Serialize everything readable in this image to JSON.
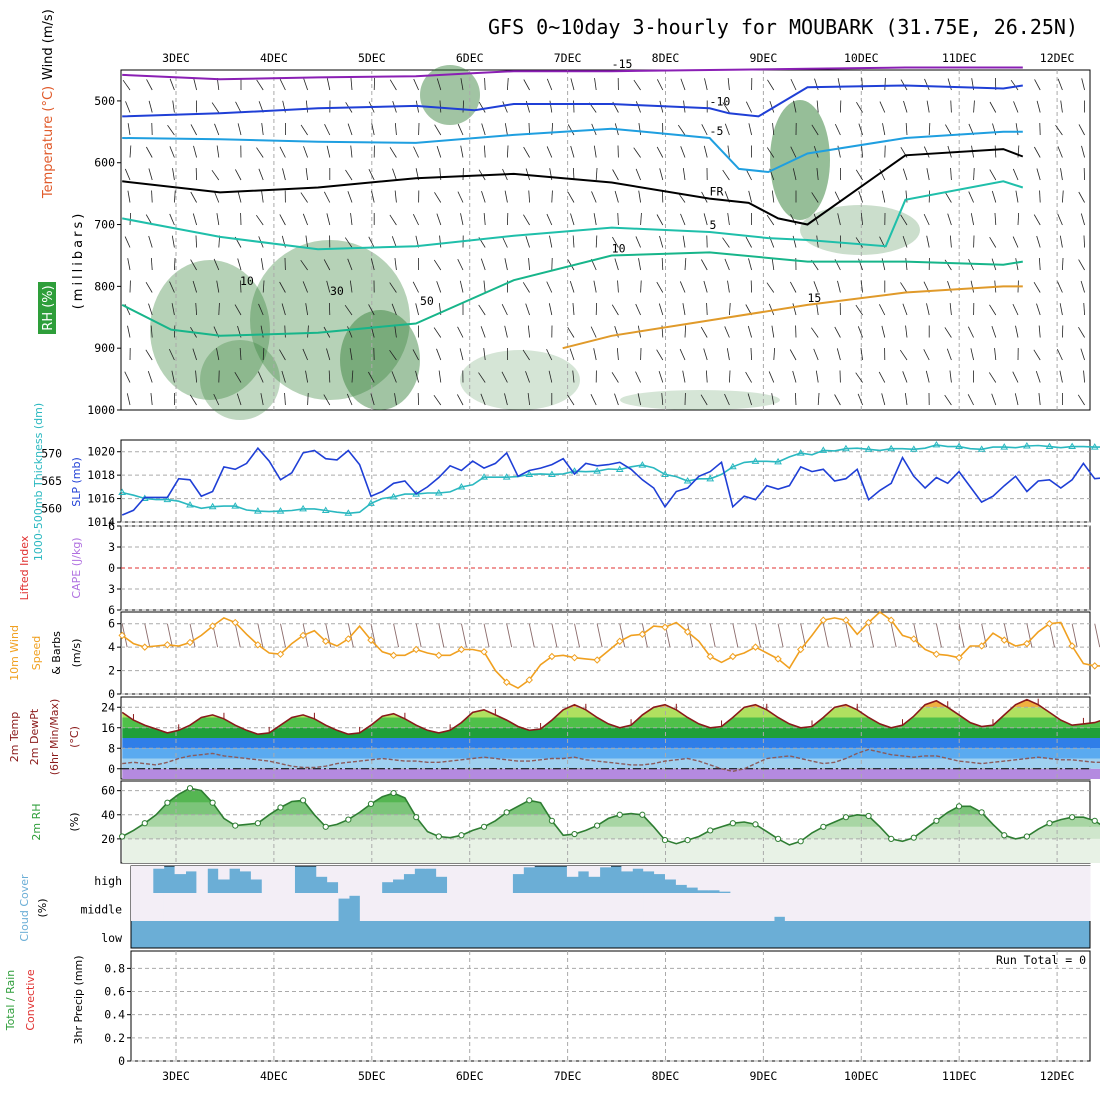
{
  "header": {
    "title": "GFS 0~10day 3-hourly for MOUBARK (31.75E, 26.25N)"
  },
  "colors": {
    "t_neg15": "#8a1fb4",
    "t_neg10": "#1f3fd6",
    "t_neg5": "#1f9fe0",
    "freezing": "#000000",
    "t_5": "#1fbfaa",
    "t_10": "#17b58a",
    "t_15": "#e09a2a",
    "t_20": "#e07a10",
    "t_25": "#d01a8a",
    "rh_fill": "#2e7d32",
    "slp": "#1f3fd6",
    "thickness": "#2ab8c0",
    "wind10m": "#f0a020",
    "cloud": "#6baed6",
    "dewpt": "#8a5a5a"
  },
  "chart_data": [
    {
      "panel": "upper-air",
      "type": "heatmap",
      "xlabels": [
        "3DEC",
        "4DEC",
        "5DEC",
        "6DEC",
        "7DEC",
        "8DEC",
        "9DEC",
        "10DEC",
        "11DEC",
        "12DEC"
      ],
      "ylabel_parts": [
        "Wind (m/s)",
        "Temperature (°C)",
        "RH (%)",
        "(millibars)"
      ],
      "yticks": [
        "500",
        "600",
        "700",
        "800",
        "900",
        "1000"
      ],
      "ylim": [
        1000,
        450
      ],
      "contours": [
        {
          "label": "-15",
          "x": [
            0,
            1,
            2,
            3,
            3.6,
            4,
            5,
            6,
            7,
            8,
            9,
            9.2
          ],
          "y": [
            458,
            465,
            462,
            460,
            455,
            452,
            452,
            450,
            448,
            446,
            446,
            446
          ]
        },
        {
          "label": "-10",
          "x": [
            0,
            1,
            2,
            3,
            3.6,
            4,
            5,
            6,
            6.2,
            6.5,
            7,
            8,
            9,
            9.2
          ],
          "y": [
            525,
            520,
            512,
            508,
            515,
            505,
            505,
            512,
            520,
            525,
            478,
            475,
            480,
            475
          ]
        },
        {
          "label": "-5",
          "x": [
            0,
            1,
            2,
            3,
            4,
            5,
            6,
            6.3,
            6.6,
            7,
            8,
            9,
            9.2
          ],
          "y": [
            560,
            562,
            566,
            568,
            555,
            545,
            560,
            610,
            615,
            585,
            560,
            550,
            550
          ]
        },
        {
          "label": "FR",
          "x": [
            0,
            1,
            2,
            3,
            4,
            5,
            6,
            6.4,
            6.7,
            7,
            8,
            9,
            9.2
          ],
          "y": [
            630,
            648,
            640,
            625,
            618,
            632,
            658,
            665,
            690,
            700,
            588,
            578,
            590
          ]
        },
        {
          "label": "5",
          "x": [
            0,
            1,
            2,
            3,
            4,
            5,
            6,
            6.6,
            7,
            7.8,
            8,
            9,
            9.2
          ],
          "y": [
            690,
            720,
            740,
            735,
            718,
            705,
            712,
            722,
            725,
            735,
            660,
            630,
            640
          ]
        },
        {
          "label": "10",
          "x": [
            0,
            0.5,
            1,
            2,
            3,
            4,
            5,
            6,
            7,
            8,
            9,
            9.2
          ],
          "y": [
            830,
            870,
            880,
            875,
            860,
            790,
            750,
            745,
            760,
            760,
            765,
            760
          ]
        },
        {
          "label": "15",
          "x": [
            4.5,
            5,
            6,
            7,
            8,
            9,
            9.2
          ],
          "y": [
            900,
            880,
            855,
            830,
            810,
            800,
            800
          ]
        }
      ],
      "rh_labels": [
        "10",
        "30",
        "50"
      ]
    },
    {
      "panel": "pressure-thickness",
      "type": "line",
      "ylabel_left": "1000-500mb Thickness (dm)",
      "ylabel_right": "SLP (mb)",
      "yticks_left": [
        "560",
        "565",
        "570"
      ],
      "yticks_right": [
        "1014",
        "1016",
        "1018",
        "1020"
      ],
      "series": [
        {
          "name": "SLP (mb)",
          "unit": "mb",
          "y_range": [
            1014,
            1021
          ],
          "values": [
            1014.6,
            1015,
            1016.1,
            1016.1,
            1016.1,
            1017.7,
            1017.6,
            1016.2,
            1016.6,
            1018.7,
            1018.5,
            1019,
            1020.3,
            1019.2,
            1017.6,
            1018.2,
            1019.9,
            1020.1,
            1019.4,
            1019.3,
            1020.1,
            1018.9,
            1016.2,
            1016.6,
            1017.3,
            1017.5,
            1016.4,
            1017,
            1017.8,
            1018.8,
            1018.4,
            1019.2,
            1018.6,
            1019,
            1019.9,
            1017.9,
            1018.4,
            1018.6,
            1018.9,
            1019.4,
            1018.1,
            1019,
            1018.8,
            1018.9,
            1019.1,
            1018.5,
            1017.6,
            1016.9,
            1015.3,
            1016.6,
            1016.9,
            1017.9,
            1018.3,
            1019.1,
            1015.3,
            1016.2,
            1015.9,
            1017.1,
            1016.8,
            1017.1,
            1018.7,
            1018.3,
            1018.5,
            1017.5,
            1017.7,
            1018.5,
            1015.9,
            1016.7,
            1017.3,
            1019.5,
            1017.9,
            1016.9,
            1017.8,
            1017.3,
            1018.3,
            1017,
            1015.7,
            1016.2,
            1017.1,
            1017.9,
            1016.6,
            1017.5,
            1017.6,
            1016.9,
            1017.6,
            1019,
            1017.7,
            1017.8
          ]
        },
        {
          "name": "1000-500mb Thickness (dm)",
          "unit": "dm",
          "y_range": [
            557.5,
            572.5
          ],
          "values": [
            562.9,
            562.4,
            561.8,
            561.6,
            561.6,
            561.3,
            560.6,
            560,
            560.3,
            560.4,
            560.4,
            559.7,
            559.5,
            559.4,
            559.5,
            559.6,
            559.9,
            559.9,
            559.6,
            559.3,
            559.1,
            559.3,
            560.9,
            561.8,
            562.1,
            562.6,
            562.6,
            562.8,
            562.8,
            563,
            563.9,
            564.3,
            565.7,
            565.7,
            565.7,
            565.8,
            566.2,
            566.3,
            566.2,
            566.3,
            566.8,
            566.7,
            566.8,
            567.2,
            567.1,
            567.6,
            567.9,
            567.4,
            566.2,
            565.8,
            565,
            565.4,
            565.4,
            566.2,
            567.6,
            568.4,
            568.6,
            568.6,
            568.5,
            569.4,
            570.1,
            569.8,
            570.6,
            570.5,
            570.9,
            571,
            570.8,
            570.6,
            570.9,
            570.9,
            570.8,
            571,
            571.6,
            571.3,
            571.3,
            570.9,
            570.8,
            571.2,
            571.2,
            571.1,
            571.4,
            571.5,
            571.3,
            571.1,
            571.3,
            571.3,
            571.2,
            571.2
          ]
        }
      ]
    },
    {
      "panel": "stability",
      "type": "line",
      "ylabel_left": "Lifted Index",
      "ylabel_right": "CAPE (J/kg)",
      "yticks": [
        "6",
        "3",
        "0",
        "3",
        "6"
      ],
      "ylim": [
        -6,
        6
      ],
      "series": [
        {
          "name": "Lifted Index",
          "values": []
        }
      ]
    },
    {
      "panel": "surface-wind",
      "type": "line",
      "ylabel_parts": [
        "10m Wind",
        "Speed",
        "& Barbs",
        "(m/s)"
      ],
      "yticks": [
        "0",
        "2",
        "4",
        "6"
      ],
      "ylim": [
        0,
        7
      ],
      "series": [
        {
          "name": "10m Wind Speed (m/s)",
          "values": [
            5,
            4.3,
            4,
            4.1,
            4.2,
            4.1,
            4.4,
            5,
            5.8,
            6.5,
            6.1,
            5.1,
            4.2,
            3.5,
            3.4,
            4.3,
            5,
            5.4,
            4.5,
            4.1,
            4.7,
            5.8,
            4.6,
            3.6,
            3.3,
            3.3,
            3.8,
            3.5,
            3.3,
            3.3,
            3.8,
            3.8,
            3.6,
            2,
            1,
            0.5,
            1.2,
            2.5,
            3.2,
            3.3,
            3.1,
            3,
            2.9,
            3.7,
            4.5,
            5,
            5.1,
            5.8,
            5.7,
            6.1,
            5.3,
            4.5,
            3.2,
            2.7,
            3.2,
            3.5,
            4,
            3.5,
            3,
            2.2,
            3.8,
            5,
            6.3,
            6.5,
            6.3,
            5.1,
            6.1,
            7,
            6.3,
            5,
            4.7,
            3.8,
            3.4,
            3.3,
            3.1,
            4.1,
            4.1,
            5.2,
            4.6,
            4.1,
            4.3,
            5.3,
            6,
            6.1,
            4.1,
            2.6,
            2.4,
            2.4
          ]
        }
      ]
    },
    {
      "panel": "temperature",
      "type": "area",
      "ylabel_parts": [
        "2m Temp",
        "2m DewPt",
        "(6hr Min/Max)",
        "(°C)"
      ],
      "yticks": [
        "0",
        "8",
        "16",
        "24"
      ],
      "ylim": [
        -4,
        28
      ],
      "series": [
        {
          "name": "2m Temp (°C)",
          "values": [
            22,
            19,
            17,
            15.5,
            14,
            15,
            17,
            20,
            21,
            19.5,
            17,
            15,
            13.5,
            14,
            17,
            20,
            21,
            19.5,
            17,
            15,
            13.5,
            14,
            17,
            20.5,
            21.5,
            19.5,
            17,
            15,
            14,
            15,
            18,
            22,
            23,
            21,
            19,
            16.5,
            15,
            15.5,
            19,
            23,
            25,
            23,
            20,
            17.5,
            16,
            17,
            21,
            24,
            25,
            23,
            20,
            17.5,
            16,
            16.5,
            20,
            24,
            25,
            23,
            20,
            17.5,
            16,
            16.5,
            20,
            24,
            25,
            23,
            20,
            17.5,
            16,
            17,
            20.5,
            25,
            26.5,
            24,
            21,
            18,
            16.5,
            17,
            21,
            25,
            27,
            25,
            22,
            19,
            17,
            17.5,
            18,
            19.5
          ]
        },
        {
          "name": "2m DewPt (°C)",
          "values": [
            2,
            2.5,
            2,
            1.5,
            2.5,
            4,
            5,
            5.5,
            6,
            5,
            4.5,
            4,
            3.5,
            3,
            2,
            1,
            0.5,
            0.5,
            1,
            2,
            2.5,
            3,
            3.5,
            4,
            3.5,
            3,
            3,
            2.5,
            2.5,
            3,
            3.5,
            4,
            4.5,
            4,
            3.5,
            3,
            3,
            3.5,
            4,
            4,
            4.5,
            3.5,
            3,
            2.5,
            2,
            1.5,
            1.5,
            2,
            3,
            3.5,
            4,
            3,
            1.5,
            0,
            -1,
            0,
            2,
            4,
            4.5,
            5,
            4,
            3,
            2,
            2.5,
            4,
            6,
            7.5,
            6.5,
            5.5,
            5,
            4.5,
            5,
            5,
            4,
            3,
            2.5,
            2,
            2.5,
            3,
            3.5,
            4,
            4.5,
            4,
            3.5,
            3.5,
            3,
            2.5,
            2.5
          ]
        }
      ]
    },
    {
      "panel": "humidity",
      "type": "area",
      "ylabel_parts": [
        "2m RH",
        "(%)"
      ],
      "yticks": [
        "20",
        "40",
        "60"
      ],
      "ylim": [
        0,
        68
      ],
      "series": [
        {
          "name": "2m RH (%)",
          "values": [
            22,
            27,
            33,
            40,
            50,
            57,
            62,
            60,
            50,
            37,
            31,
            32,
            33,
            40,
            46,
            51,
            52,
            40,
            30,
            32,
            36,
            42,
            49,
            55,
            58,
            54,
            38,
            26,
            22,
            21,
            23,
            27,
            30,
            35,
            42,
            47,
            52,
            50,
            35,
            23,
            24,
            27,
            31,
            37,
            40,
            41,
            40,
            30,
            19,
            16,
            19,
            22,
            27,
            30,
            33,
            34,
            32,
            26,
            20,
            15,
            18,
            25,
            30,
            34,
            38,
            40,
            39,
            30,
            20,
            18,
            21,
            28,
            35,
            42,
            47,
            47,
            42,
            32,
            23,
            20,
            22,
            28,
            33,
            36,
            38,
            38,
            35,
            29
          ]
        }
      ]
    },
    {
      "panel": "cloud",
      "type": "heatmap",
      "ylabel_parts": [
        "Cloud Cover",
        "(%)"
      ],
      "yticks": [
        "high",
        "middle",
        "low"
      ],
      "series": [
        {
          "name": "high",
          "values": [
            0,
            0,
            0.9,
            1,
            0.7,
            0.8,
            0,
            0.9,
            0.5,
            0.9,
            0.8,
            0.5,
            0,
            0,
            0,
            1,
            1,
            0.6,
            0.4,
            0,
            0,
            0,
            0,
            0.4,
            0.5,
            0.7,
            0.9,
            0.9,
            0.6,
            0,
            0,
            0,
            0,
            0,
            0,
            0.7,
            0.95,
            1,
            1,
            1,
            0.6,
            0.8,
            0.6,
            0.95,
            1,
            0.8,
            0.9,
            0.8,
            0.7,
            0.5,
            0.3,
            0.2,
            0.1,
            0.1,
            0.05,
            0,
            0,
            0,
            0,
            0,
            0,
            0,
            0,
            0,
            0,
            0,
            0,
            0,
            0,
            0,
            0,
            0,
            0,
            0,
            0,
            0,
            0,
            0,
            0,
            0,
            0,
            0,
            0,
            0,
            0,
            0,
            0,
            0
          ]
        },
        {
          "name": "middle",
          "values": [
            0,
            0,
            0,
            0,
            0,
            0,
            0,
            0,
            0,
            0,
            0,
            0,
            0,
            0,
            0,
            0,
            0,
            0,
            0,
            0.8,
            0.9,
            0,
            0,
            0,
            0,
            0,
            0,
            0,
            0,
            0,
            0,
            0,
            0,
            0,
            0,
            0,
            0,
            0,
            0,
            0,
            0,
            0,
            0,
            0,
            0,
            0,
            0,
            0,
            0,
            0,
            0,
            0,
            0,
            0,
            0,
            0,
            0,
            0,
            0,
            0.15,
            0,
            0,
            0,
            0,
            0,
            0,
            0,
            0,
            0,
            0,
            0,
            0,
            0,
            0,
            0,
            0,
            0,
            0,
            0,
            0,
            0,
            0,
            0,
            0,
            0,
            0,
            0,
            0
          ]
        },
        {
          "name": "low",
          "values": []
        }
      ]
    },
    {
      "panel": "precip",
      "type": "bar",
      "ylabel_left": "Total / Rain",
      "ylabel_left2": "Convective",
      "ylabel_right": "3hr Precip (mm)",
      "yticks": [
        "0",
        "0.2",
        "0.4",
        "0.6",
        "0.8"
      ],
      "ylim": [
        0,
        0.95
      ],
      "annotation": "Run Total = 0",
      "series": [
        {
          "name": "3hr Precip (mm)",
          "values": []
        }
      ]
    }
  ]
}
